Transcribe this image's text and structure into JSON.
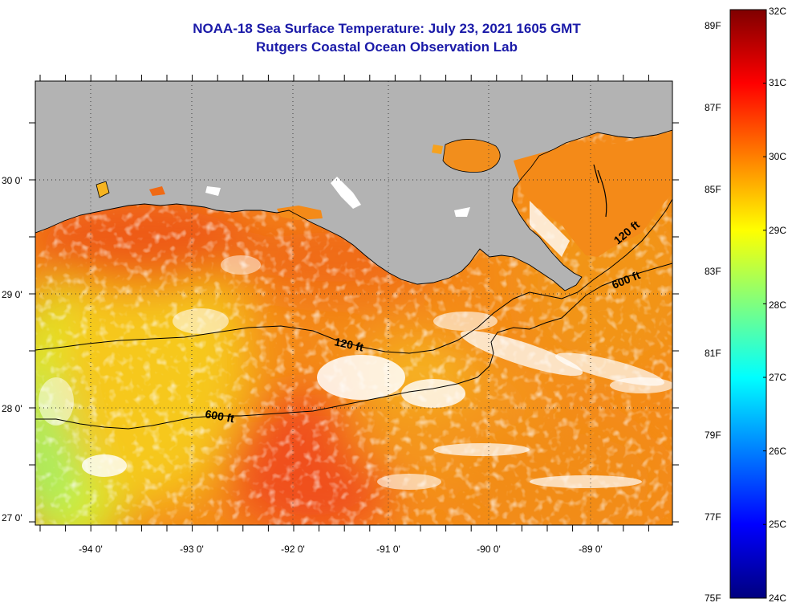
{
  "title": {
    "line1": "NOAA-18 Sea Surface Temperature:  July 23, 2021 1605 GMT",
    "line2": "Rutgers Coastal Ocean Observation Lab"
  },
  "map": {
    "region": "Northern Gulf of Mexico",
    "lon_range": [
      -94.55,
      -88.35
    ],
    "lat_range": [
      26.93,
      30.83
    ],
    "land_color": "#b3b3b3",
    "missing_data_color": "#ffffff",
    "lon_labels": [
      {
        "value": -94,
        "label": "-94 0'"
      },
      {
        "value": -93,
        "label": "-93 0'"
      },
      {
        "value": -92,
        "label": "-92 0'"
      },
      {
        "value": -91,
        "label": "-91 0'"
      },
      {
        "value": -90,
        "label": "-90 0'"
      },
      {
        "value": -89,
        "label": "-89 0'"
      }
    ],
    "lat_labels": [
      {
        "value": 30,
        "label": "30 0'"
      },
      {
        "value": 29,
        "label": "29 0'"
      },
      {
        "value": 28,
        "label": "28 0'"
      },
      {
        "value": 27,
        "label": "27 0'"
      }
    ],
    "contours": [
      {
        "label": "120 ft"
      },
      {
        "label": "600 ft"
      },
      {
        "label": "120 ft"
      },
      {
        "label": "600 ft"
      }
    ]
  },
  "colorbar": {
    "fahrenheit_labels": [
      "89F",
      "87F",
      "85F",
      "83F",
      "81F",
      "79F",
      "77F",
      "75F"
    ],
    "celsius_labels": [
      "32C",
      "31C",
      "30C",
      "29C",
      "28C",
      "27C",
      "26C",
      "25C",
      "24C"
    ],
    "colors": [
      "#00007f",
      "#0000ff",
      "#007fff",
      "#00ffff",
      "#7fff7f",
      "#ffff00",
      "#ff7f00",
      "#ff0000",
      "#7f0000"
    ]
  }
}
